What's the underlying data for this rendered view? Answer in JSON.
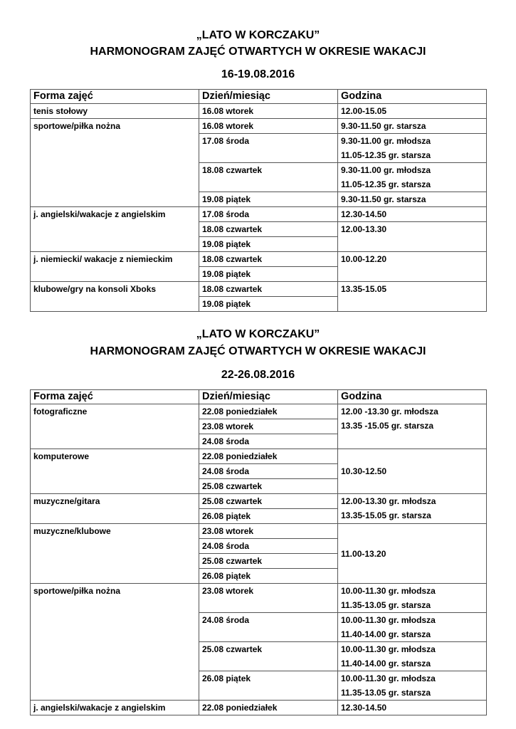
{
  "sections": [
    {
      "title_lines": [
        "„LATO W KORCZAKU”",
        "HARMONOGRAM ZAJĘĆ OTWARTYCH W OKRESIE  WAKACJI",
        "16-19.08.2016"
      ],
      "headers": [
        "Forma zajęć",
        "Dzień/miesiąc",
        "Godzina"
      ],
      "groups": [
        {
          "activity": "tenis stołowy",
          "days": [
            "16.08 wtorek"
          ],
          "times": [
            {
              "lines": [
                "12.00-15.05"
              ],
              "span": 1
            }
          ]
        },
        {
          "activity": "sportowe/piłka nożna",
          "days": [
            "16.08 wtorek",
            "17.08 środa",
            "18.08 czwartek",
            "19.08 piątek"
          ],
          "times": [
            {
              "lines": [
                "9.30-11.50 gr. starsza"
              ],
              "span": 1
            },
            {
              "lines": [
                "9.30-11.00 gr. młodsza",
                "11.05-12.35 gr. starsza"
              ],
              "span": 1
            },
            {
              "lines": [
                "9.30-11.00 gr. młodsza",
                "11.05-12.35 gr. starsza"
              ],
              "span": 1
            },
            {
              "lines": [
                "9.30-11.50 gr. starsza"
              ],
              "span": 1
            }
          ]
        },
        {
          "activity": "j. angielski/wakacje z angielskim",
          "days": [
            "17.08 środa",
            "18.08 czwartek",
            "19.08 piątek"
          ],
          "times": [
            {
              "lines": [
                "12.30-14.50"
              ],
              "span": 1
            },
            {
              "lines": [
                "12.00-13.30"
              ],
              "span": 2
            }
          ]
        },
        {
          "activity": "j. niemiecki/ wakacje z niemieckim",
          "days": [
            "18.08 czwartek",
            "19.08 piątek"
          ],
          "times": [
            {
              "lines": [
                "10.00-12.20"
              ],
              "span": 2
            }
          ]
        },
        {
          "activity": "klubowe/gry na konsoli Xboks",
          "days": [
            "18.08 czwartek",
            "19.08 piątek"
          ],
          "times": [
            {
              "lines": [
                "13.35-15.05"
              ],
              "span": 2
            }
          ]
        }
      ]
    },
    {
      "title_lines": [
        "„LATO W KORCZAKU”",
        "HARMONOGRAM ZAJĘĆ OTWARTYCH W OKRESIE WAKACJI",
        "22-26.08.2016"
      ],
      "headers": [
        "Forma zajęć",
        "Dzień/miesiąc",
        "Godzina"
      ],
      "groups": [
        {
          "activity": "fotograficzne",
          "days": [
            "22.08 poniedziałek",
            "23.08 wtorek",
            "24.08 środa"
          ],
          "times": [
            {
              "lines": [
                "12.00 -13.30  gr. młodsza",
                "13.35 -15.05  gr. starsza"
              ],
              "span": 3
            }
          ]
        },
        {
          "activity": "komputerowe",
          "days": [
            "22.08 poniedziałek",
            "24.08 środa",
            "25.08 czwartek"
          ],
          "times": [
            {
              "lines": [
                "10.30-12.50"
              ],
              "span": 3
            }
          ]
        },
        {
          "activity": "muzyczne/gitara",
          "days": [
            "25.08 czwartek",
            "26.08 piątek"
          ],
          "times": [
            {
              "lines": [
                "12.00-13.30  gr. młodsza",
                "13.35-15.05  gr. starsza"
              ],
              "span": 2
            }
          ]
        },
        {
          "activity": "muzyczne/klubowe",
          "days": [
            "23.08 wtorek",
            "24.08 środa",
            "25.08 czwartek",
            "26.08 piątek"
          ],
          "times": [
            {
              "lines": [
                "11.00-13.20"
              ],
              "span": 4
            }
          ]
        },
        {
          "activity": "sportowe/piłka nożna",
          "days": [
            "23.08 wtorek",
            "24.08 środa",
            "25.08 czwartek",
            "26.08 piątek"
          ],
          "times": [
            {
              "lines": [
                "10.00-11.30 gr. młodsza",
                "11.35-13.05 gr. starsza"
              ],
              "span": 1
            },
            {
              "lines": [
                "10.00-11.30 gr. młodsza",
                "11.40-14.00 gr. starsza"
              ],
              "span": 1
            },
            {
              "lines": [
                "10.00-11.30 gr. młodsza",
                "11.40-14.00 gr. starsza"
              ],
              "span": 1
            },
            {
              "lines": [
                "10.00-11.30 gr. młodsza",
                "11.35-13.05 gr. starsza"
              ],
              "span": 1
            }
          ]
        },
        {
          "activity": "j. angielski/wakacje z angielskim",
          "days": [
            "22.08 poniedziałek"
          ],
          "times": [
            {
              "lines": [
                "12.30-14.50"
              ],
              "span": 1
            }
          ]
        }
      ]
    }
  ]
}
